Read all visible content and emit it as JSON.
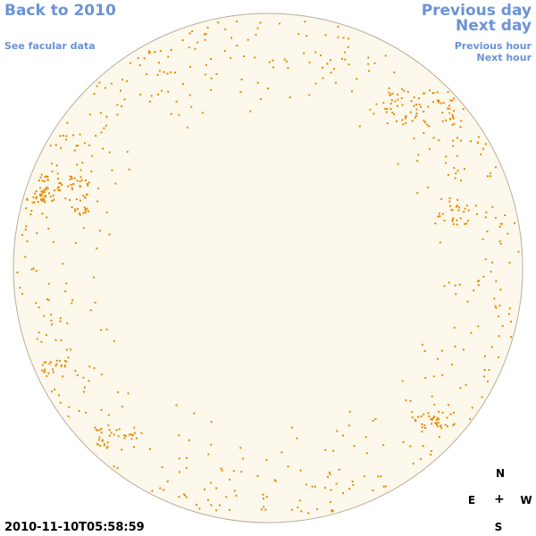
{
  "nav": {
    "back_label": "Back to 2010",
    "facular_label": "See facular data",
    "prev_day_label": "Previous day",
    "next_day_label": "Next day",
    "prev_hour_label": "Previous hour",
    "next_hour_label": "Next hour"
  },
  "timestamp": "2010-11-10T05:58:59",
  "compass": {
    "north": "N",
    "south": "S",
    "east": "E",
    "west": "W",
    "center": "+"
  },
  "colors": {
    "link": "#6b93d6",
    "disk_fill": "#fdf8ec",
    "disk_border": "#b8ae9c",
    "facula": "#e68a00"
  }
}
